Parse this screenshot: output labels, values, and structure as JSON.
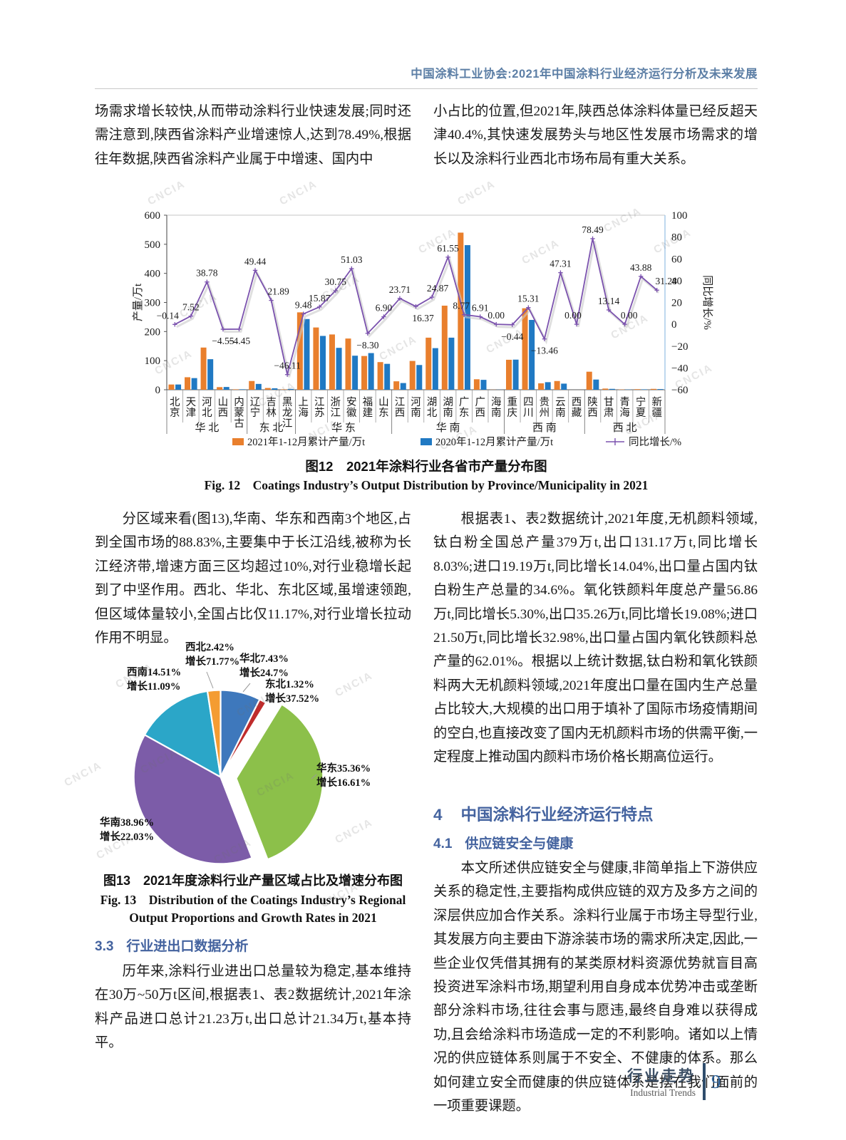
{
  "header": {
    "journal_line": "中国涂料工业协会:2021年中国涂料行业经济运行分析及未来发展"
  },
  "watermark": "CNCIA",
  "body": {
    "left_top": "场需求增长较快,从而带动涂料行业快速发展;同时还需注意到,陕西省涂料产业增速惊人,达到78.49%,根据往年数据,陕西省涂料产业属于中增速、国内中",
    "right_top": "小占比的位置,但2021年,陕西总体涂料体量已经反超天津40.4%,其快速发展势头与地区性发展市场需求的增长以及涂料行业西北市场布局有重大关系。",
    "left_mid": "分区域来看(图13),华南、华东和西南3个地区,占到全国市场的88.83%,主要集中于长江沿线,被称为长江经济带,增速方面三区均超过10%,对行业稳增长起到了中坚作用。西北、华北、东北区域,虽增速领跑,但区域体量较小,全国占比仅11.17%,对行业增长拉动作用不明显。",
    "right_mid": "根据表1、表2数据统计,2021年度,无机颜料领域,钛白粉全国总产量379万t,出口131.17万t,同比增长8.03%;进口19.19万t,同比增长14.04%,出口量占国内钛白粉生产总量的34.6%。氧化铁颜料年度总产量56.86万t,同比增长5.30%,出口35.26万t,同比增长19.08%;进口21.50万t,同比增长32.98%,出口量占国内氧化铁颜料总产量的62.01%。根据以上统计数据,钛白粉和氧化铁颜料两大无机颜料领域,2021年度出口量在国内生产总量占比较大,大规模的出口用于填补了国际市场疫情期间的空白,也直接改变了国内无机颜料市场的供需平衡,一定程度上推动国内颜料市场价格长期高位运行。",
    "section_3_3": {
      "num": "3.3",
      "title": "行业进出口数据分析"
    },
    "left_bottom": "历年来,涂料行业进出口总量较为稳定,基本维持在30万~50万t区间,根据表1、表2数据统计,2021年涂料产品进口总计21.23万t,出口总计21.34万t,基本持平。",
    "section_4": {
      "num": "4",
      "title": "中国涂料行业经济运行特点"
    },
    "section_4_1": {
      "num": "4.1",
      "title": "供应链安全与健康"
    },
    "right_bottom": "本文所述供应链安全与健康,非简单指上下游供应关系的稳定性,主要指构成供应链的双方及多方之间的深层供应加合作关系。涂料行业属于市场主导型行业,其发展方向主要由下游涂装市场的需求所决定,因此,一些企业仅凭借其拥有的某类原材料资源优势就盲目高投资进军涂料市场,期望利用自身成本优势冲击或垄断部分涂料市场,往往会事与愿违,最终自身难以获得成功,且会给涂料市场造成一定的不利影响。诸如以上情况的供应链体系则属于不安全、不健康的体系。那么如何建立安全而健康的供应链体系是摆在我们面前的一项重要课题。"
  },
  "figures": {
    "fig12": {
      "caption_cn": "图12　2021年涂料行业各省市产量分布图",
      "caption_en": "Fig. 12　Coatings Industry’s Output Distribution by Province/Municipality in 2021"
    },
    "fig13": {
      "caption_cn": "图13　2021年度涂料行业产量区域占比及增速分布图",
      "caption_en_1": "Fig. 13　Distribution of the Coatings Industry’s Regional",
      "caption_en_2": "Output Proportions and Growth Rates in 2021"
    }
  },
  "footer": {
    "cn": "行业走势",
    "en": "Industrial Trends",
    "page": "9"
  },
  "chart_data": [
    {
      "type": "bar",
      "title": "2021年涂料行业各省市产量分布图",
      "categories": [
        "北京",
        "天津",
        "河北",
        "山西",
        "内蒙古",
        "辽宁",
        "吉林",
        "黑龙江",
        "上海",
        "江苏",
        "浙江",
        "安徽",
        "福建",
        "山东",
        "江西",
        "河南",
        "湖北",
        "湖南",
        "广东",
        "广西",
        "海南",
        "重庆",
        "四川",
        "贵州",
        "云南",
        "西藏",
        "陕西",
        "甘肃",
        "青海",
        "宁夏",
        "新疆"
      ],
      "groups": [
        {
          "label": "华北",
          "span": 5
        },
        {
          "label": "东北",
          "span": 3
        },
        {
          "label": "华东",
          "span": 6
        },
        {
          "label": "华南",
          "span": 7
        },
        {
          "label": "西南",
          "span": 5
        },
        {
          "label": "西北",
          "span": 5
        }
      ],
      "series": [
        {
          "name": "2021年1-12月累计产量/万t",
          "kind": "bar",
          "color": "#E97F2D",
          "values": [
            18,
            43,
            145,
            9,
            1.5,
            30,
            6,
            1.5,
            266,
            214,
            190,
            176,
            116,
            95,
            29,
            99,
            179,
            289,
            540,
            36,
            0.4,
            103,
            280,
            22,
            30,
            0,
            62,
            4,
            1,
            2,
            3
          ]
        },
        {
          "name": "2020年1-12月累计产量/万t",
          "kind": "bar",
          "color": "#2079C3",
          "values": [
            18,
            40,
            105,
            9.5,
            1.6,
            20,
            4.9,
            2.8,
            243,
            185,
            144,
            117,
            126,
            89,
            23,
            85,
            143,
            179,
            497,
            34,
            0.4,
            103.5,
            240,
            26,
            21,
            0,
            35,
            3,
            1,
            1.4,
            2.3
          ]
        },
        {
          "name": "同比增长/%",
          "kind": "line",
          "color": "#7B52AE",
          "axis": "right",
          "values": [
            -0.14,
            7.52,
            38.78,
            -4.55,
            -4.45,
            49.44,
            21.89,
            -46.11,
            9.48,
            15.87,
            30.75,
            51.03,
            -8.3,
            6.9,
            23.71,
            16.37,
            24.87,
            61.55,
            8.77,
            6.91,
            0.0,
            -0.44,
            15.31,
            -13.46,
            47.31,
            0.0,
            78.49,
            13.14,
            0.0,
            43.88,
            31.28
          ]
        }
      ],
      "ylabel_left": "产量/万t",
      "ylabel_right": "同比增长/%",
      "ylim_left": [
        0,
        600
      ],
      "ylim_right": [
        -60,
        100
      ],
      "grid": false,
      "legend_position": "bottom"
    },
    {
      "type": "pie",
      "title": "2021年度涂料行业产量区域占比及增速分布图",
      "growth_prefix": "增长",
      "slices": [
        {
          "label": "华北",
          "share": "7.43",
          "growth": "24.7",
          "color": "#3E78BC",
          "exploded": false
        },
        {
          "label": "东北",
          "share": "1.32",
          "growth": "37.52",
          "color": "#BF2C2C",
          "exploded": false
        },
        {
          "label": "华东",
          "share": "35.36",
          "growth": "16.61",
          "color": "#8CC04A",
          "exploded": true
        },
        {
          "label": "华南",
          "share": "38.96",
          "growth": "22.03",
          "color": "#7C5CA8",
          "exploded": false
        },
        {
          "label": "西南",
          "share": "14.51",
          "growth": "11.09",
          "color": "#2BA6C8",
          "exploded": false
        },
        {
          "label": "西北",
          "share": "2.42",
          "growth": "71.77",
          "color": "#F49C32",
          "exploded": false
        }
      ],
      "start_angle": "top",
      "direction": "clockwise"
    }
  ]
}
